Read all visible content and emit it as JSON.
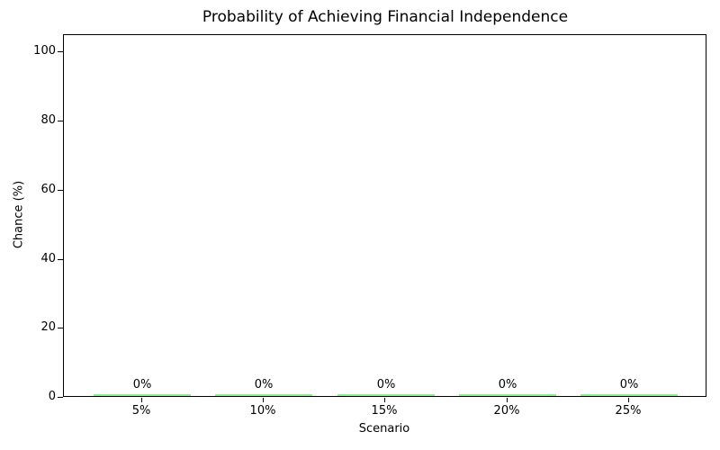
{
  "chart_data": {
    "type": "bar",
    "title": "Probability of Achieving Financial Independence",
    "xlabel": "Scenario",
    "ylabel": "Chance (%)",
    "categories": [
      "5%",
      "10%",
      "15%",
      "20%",
      "25%"
    ],
    "values": [
      0,
      0,
      0,
      0,
      0
    ],
    "bar_value_labels": [
      "0%",
      "0%",
      "0%",
      "0%",
      "0%"
    ],
    "yticks": [
      0,
      20,
      40,
      60,
      80,
      100
    ],
    "ylim": [
      0,
      105
    ],
    "bar_color": "#90EE90",
    "axis_color": "#000000",
    "background_color": "#ffffff",
    "grid": "off",
    "legend_position": "none"
  }
}
